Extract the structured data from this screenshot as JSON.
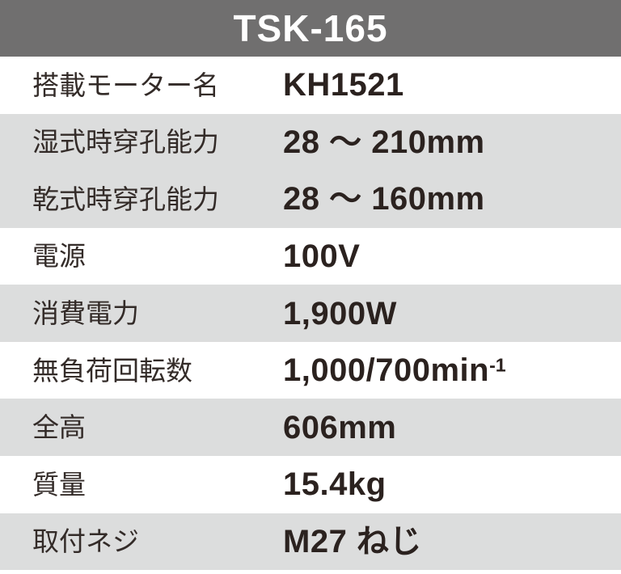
{
  "header": {
    "title": "TSK-165"
  },
  "colors": {
    "header_bg": "#706f6f",
    "header_text": "#ffffff",
    "row_bg": "#ffffff",
    "row_shaded_bg": "#dcdddd",
    "label_text": "#332b28",
    "value_text": "#2b221f"
  },
  "table": {
    "rows": [
      {
        "label": "搭載モーター名",
        "value": "KH1521",
        "shaded": false
      },
      {
        "label": "湿式時穿孔能力",
        "value": "28 ～ 210mm",
        "shaded": true
      },
      {
        "label": "乾式時穿孔能力",
        "value": "28 ～ 160mm",
        "shaded": true
      },
      {
        "label": "電源",
        "value": "100V",
        "shaded": false
      },
      {
        "label": "消費電力",
        "value": "1,900W",
        "shaded": true
      },
      {
        "label": "無負荷回転数",
        "value": "1,000/700min",
        "value_sup": "-1",
        "shaded": false
      },
      {
        "label": "全高",
        "value": "606mm",
        "shaded": true
      },
      {
        "label": "質量",
        "value": "15.4kg",
        "shaded": false
      },
      {
        "label": "取付ネジ",
        "value": "M27 ねじ",
        "shaded": true
      }
    ]
  }
}
